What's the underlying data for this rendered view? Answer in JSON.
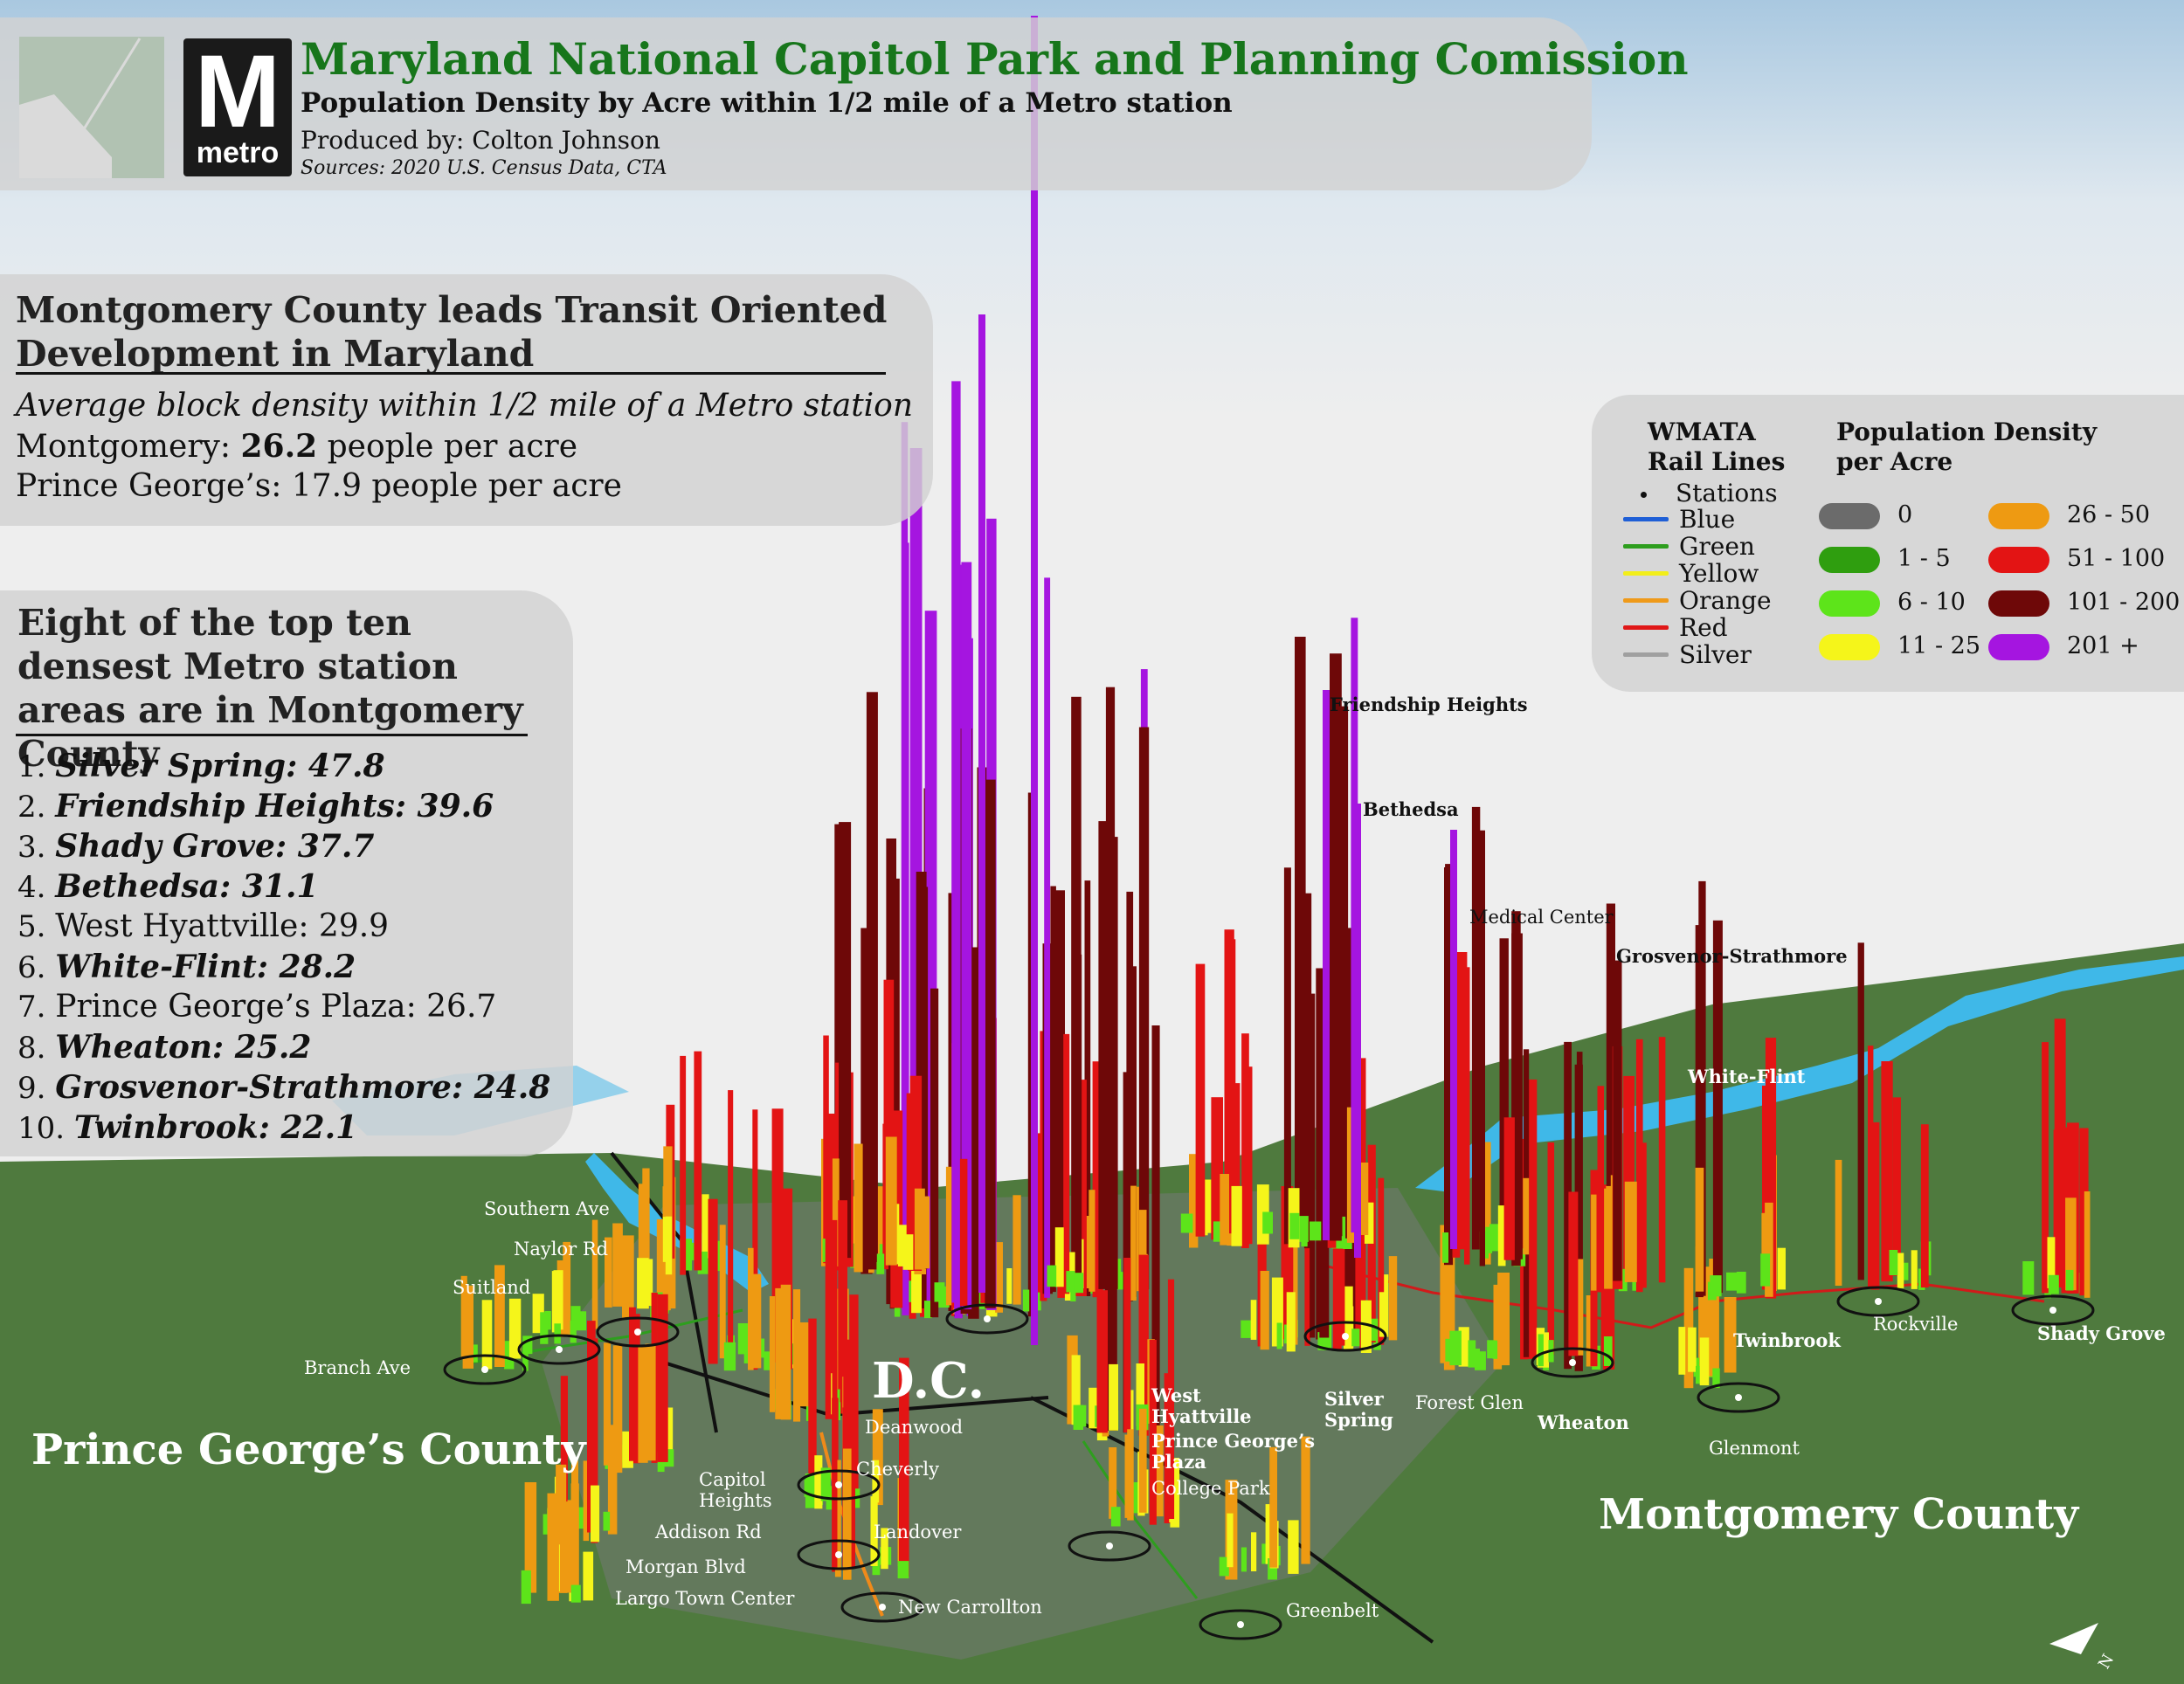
{
  "header": {
    "title": "Maryland National Capitol Park and Planning Comission",
    "subtitle": "Population Density by Acre within 1/2 mile of a Metro station",
    "credit": "Produced by: Colton Johnson",
    "sources": "Sources: 2020 U.S. Census Data, CTA",
    "metro_logo_text": "metro",
    "metro_logo_letter": "M"
  },
  "tod_box": {
    "heading": "Montgomery County leads Transit Oriented Development in Maryland",
    "subheading": "Average block density within 1/2 mile of a Metro station",
    "montgomery_prefix": "Montgomery: ",
    "montgomery_value": "26.2",
    "montgomery_suffix": " people per acre",
    "pg_line": "Prince George’s: 17.9 people per acre"
  },
  "rank_box": {
    "heading": "Eight of the top ten densest Metro station areas are in Montgomery County",
    "items": [
      {
        "rank": "1.",
        "name": "Silver Spring: 47.8",
        "montgomery": true
      },
      {
        "rank": "2.",
        "name": "Friendship Heights: 39.6",
        "montgomery": true
      },
      {
        "rank": "3.",
        "name": "Shady Grove: 37.7",
        "montgomery": true
      },
      {
        "rank": "4.",
        "name": "Bethedsa: 31.1",
        "montgomery": true
      },
      {
        "rank": "5.",
        "name": "West Hyattville: 29.9",
        "montgomery": false
      },
      {
        "rank": "6.",
        "name": "White-Flint: 28.2",
        "montgomery": true
      },
      {
        "rank": "7.",
        "name": "Prince George’s Plaza: 26.7",
        "montgomery": false
      },
      {
        "rank": "8.",
        "name": "Wheaton: 25.2",
        "montgomery": true
      },
      {
        "rank": "9.",
        "name": "Grosvenor-Strathmore: 24.8",
        "montgomery": true
      },
      {
        "rank": "10.",
        "name": "Twinbrook: 22.1",
        "montgomery": true
      }
    ]
  },
  "legend": {
    "lines_title_1": "WMATA",
    "lines_title_2": "Rail Lines",
    "stations_label": "Stations",
    "lines": [
      {
        "label": "Blue",
        "color": "#1f5fd6"
      },
      {
        "label": "Green",
        "color": "#2e9e1e"
      },
      {
        "label": "Yellow",
        "color": "#f2ee1a"
      },
      {
        "label": "Orange",
        "color": "#ef9a1a"
      },
      {
        "label": "Red",
        "color": "#e01818"
      },
      {
        "label": "Silver",
        "color": "#a0a0a0"
      }
    ],
    "density_title_1": "Population Density",
    "density_title_2": "per Acre",
    "density_classes": [
      {
        "label": "0",
        "color": "#6b6b6b"
      },
      {
        "label": "1 - 5",
        "color": "#2f9e0f"
      },
      {
        "label": "6 - 10",
        "color": "#5de41a"
      },
      {
        "label": "11 - 25",
        "color": "#f5f51a"
      },
      {
        "label": "26 - 50",
        "color": "#ee9a12"
      },
      {
        "label": "51 - 100",
        "color": "#e31414"
      },
      {
        "label": "101 - 200",
        "color": "#6e0808"
      },
      {
        "label": "201 +",
        "color": "#a515e0"
      }
    ]
  },
  "map": {
    "dc_label": "D.C.",
    "pg_county_label": "Prince George’s County",
    "mc_county_label": "Montgomery County",
    "stations": {
      "southern_ave": "Southern Ave",
      "naylor_rd": "Naylor Rd",
      "suitland": "Suitland",
      "branch_ave": "Branch Ave",
      "deanwood": "Deanwood",
      "cheverly": "Cheverly",
      "capitol_heights": "Capitol Heights",
      "addison_rd": "Addison Rd",
      "morgan_blvd": "Morgan Blvd",
      "largo_town_center": "Largo Town Center",
      "landover": "Landover",
      "new_carrollton": "New Carrollton",
      "west_hyattville": "West Hyattville",
      "pg_plaza": "Prince George’s Plaza",
      "college_park": "College Park",
      "greenbelt": "Greenbelt",
      "silver_spring": "Silver Spring",
      "forest_glen": "Forest Glen",
      "wheaton": "Wheaton",
      "glenmont": "Glenmont",
      "twinbrook": "Twinbrook",
      "rockville": "Rockville",
      "shady_grove": "Shady Grove",
      "white_flint": "White-Flint",
      "grosvenor": "Grosvenor-Strathmore",
      "medical_center": "Medical Center",
      "bethesda": "Bethedsa",
      "friendship_heights": "Friendship Heights"
    }
  }
}
